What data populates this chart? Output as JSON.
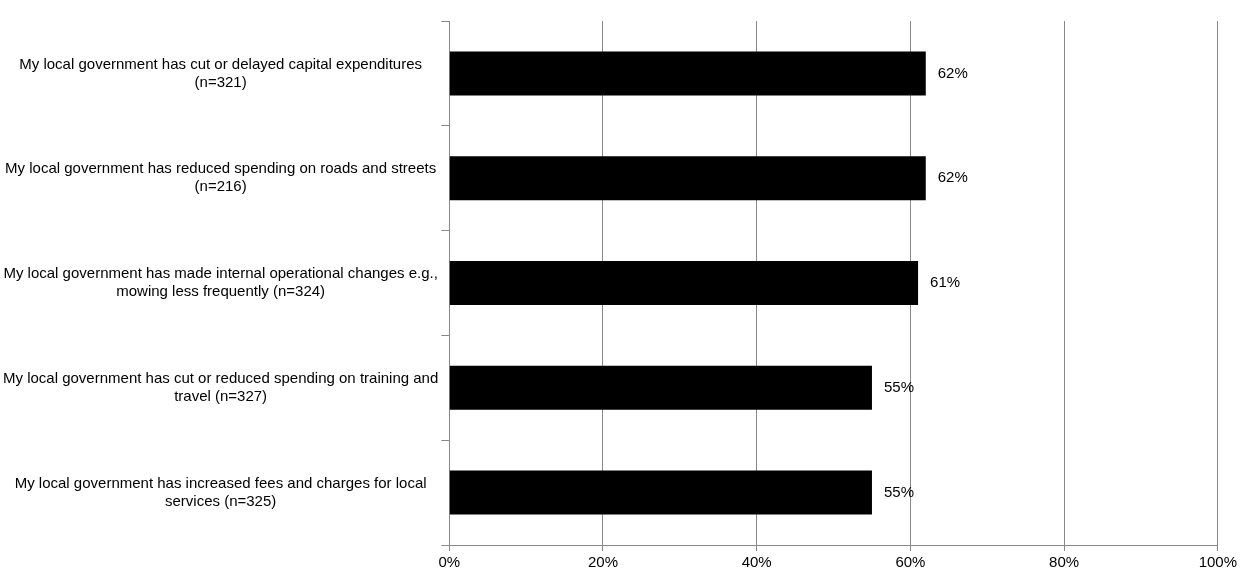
{
  "chart_data": {
    "type": "bar",
    "orientation": "horizontal",
    "categories": [
      "My local government has cut or delayed capital expenditures\n(n=321)",
      "My local government has reduced spending on roads and streets\n(n=216)",
      "My local government has made internal operational changes e.g.,\nmowing less frequently (n=324)",
      "My local government has cut or reduced spending on training and\ntravel (n=327)",
      "My local government has increased fees and charges for local\nservices (n=325)"
    ],
    "values": [
      62,
      62,
      61,
      55,
      55
    ],
    "value_labels": [
      "62%",
      "62%",
      "61%",
      "55%",
      "55%"
    ],
    "color": "#000000",
    "xlim": [
      0,
      100
    ],
    "xticks": [
      {
        "value": 0,
        "label": "0%"
      },
      {
        "value": 20,
        "label": "20%"
      },
      {
        "value": 40,
        "label": "40%"
      },
      {
        "value": 60,
        "label": "60%"
      },
      {
        "value": 80,
        "label": "80%"
      },
      {
        "value": 100,
        "label": "100%"
      }
    ],
    "grid": "x",
    "legend": false
  }
}
